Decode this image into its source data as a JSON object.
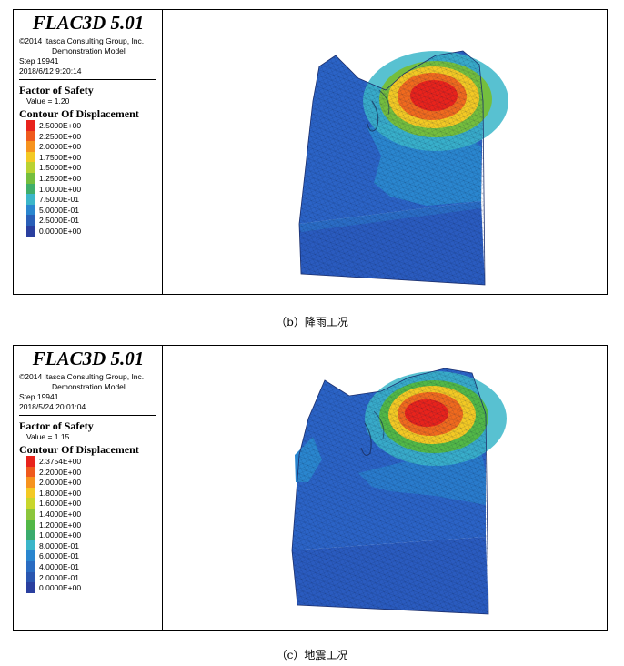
{
  "panels": [
    {
      "id": "b",
      "app_title": "FLAC3D 5.01",
      "copyright": "©2014 Itasca Consulting Group, Inc.",
      "model": "Demonstration Model",
      "step": "Step 19941",
      "timestamp": "2018/6/12 9:20:14",
      "fos_heading": "Factor of Safety",
      "fos_value": "Value = 1.20",
      "contour_heading": "Contour Of Displacement",
      "scale": [
        {
          "label": "2.5000E+00",
          "color": "#e8231c"
        },
        {
          "label": "2.2500E+00",
          "color": "#ef5a1d"
        },
        {
          "label": "2.0000E+00",
          "color": "#f6931e"
        },
        {
          "label": "1.7500E+00",
          "color": "#f3c924"
        },
        {
          "label": "1.5000E+00",
          "color": "#b9d232"
        },
        {
          "label": "1.2500E+00",
          "color": "#74be3e"
        },
        {
          "label": "1.0000E+00",
          "color": "#3fae6a"
        },
        {
          "label": "7.5000E-01",
          "color": "#3bb6c9"
        },
        {
          "label": "5.0000E-01",
          "color": "#2a86cf"
        },
        {
          "label": "2.5000E-01",
          "color": "#2a5fb8"
        },
        {
          "label": "0.0000E+00",
          "color": "#2a3f9f"
        }
      ],
      "caption": "（b）降雨工况"
    },
    {
      "id": "c",
      "app_title": "FLAC3D 5.01",
      "copyright": "©2014 Itasca Consulting Group, Inc.",
      "model": "Demonstration Model",
      "step": "Step 19941",
      "timestamp": "2018/5/24 20:01:04",
      "fos_heading": "Factor of Safety",
      "fos_value": "Value = 1.15",
      "contour_heading": "Contour Of Displacement",
      "scale": [
        {
          "label": "2.3754E+00",
          "color": "#e8231c"
        },
        {
          "label": "2.2000E+00",
          "color": "#ef5a1d"
        },
        {
          "label": "2.0000E+00",
          "color": "#f6931e"
        },
        {
          "label": "1.8000E+00",
          "color": "#f3c924"
        },
        {
          "label": "1.6000E+00",
          "color": "#c8d62c"
        },
        {
          "label": "1.4000E+00",
          "color": "#8cc63c"
        },
        {
          "label": "1.2000E+00",
          "color": "#52b847"
        },
        {
          "label": "1.0000E+00",
          "color": "#3aab6e"
        },
        {
          "label": "8.0000E-01",
          "color": "#3bb6c9"
        },
        {
          "label": "6.0000E-01",
          "color": "#2a86cf"
        },
        {
          "label": "4.0000E-01",
          "color": "#2a6cc2"
        },
        {
          "label": "2.0000E-01",
          "color": "#2a56b0"
        },
        {
          "label": "0.0000E+00",
          "color": "#2a3f9f"
        }
      ],
      "caption": "（c）地震工况"
    }
  ]
}
